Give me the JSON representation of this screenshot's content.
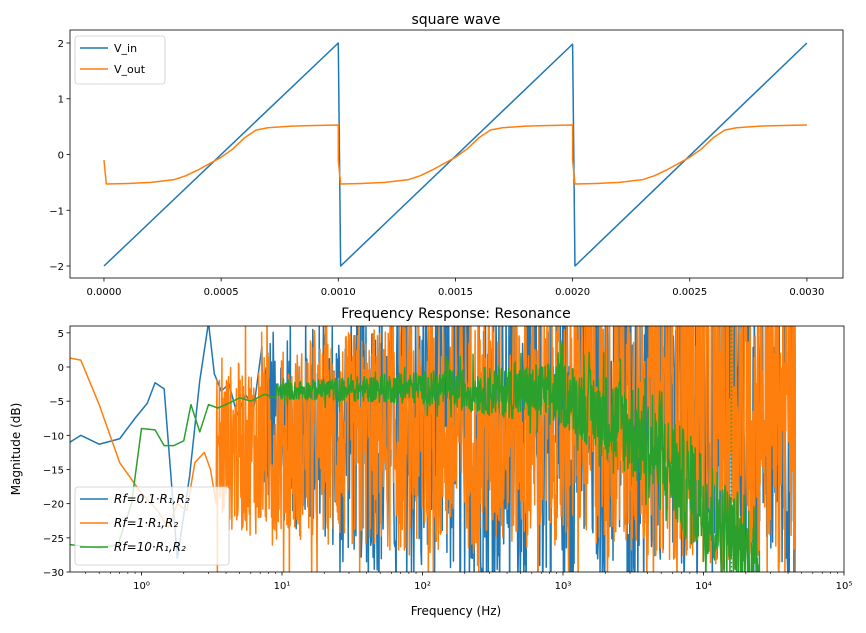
{
  "colors": {
    "blue": "#1f77b4",
    "orange": "#ff7f0e",
    "green": "#2ca02c"
  },
  "chart_data": [
    {
      "type": "line",
      "title": "square wave",
      "xlabel": "",
      "ylabel": "",
      "xlim": [
        -0.000145,
        0.003154
      ],
      "ylim": [
        -2.215,
        2.233
      ],
      "xticks": [
        0,
        0.0005,
        0.001,
        0.0015,
        0.002,
        0.0025,
        0.003
      ],
      "xtick_labels": [
        "0.0000",
        "0.0005",
        "0.0010",
        "0.0015",
        "0.0020",
        "0.0025",
        "0.0030"
      ],
      "yticks": [
        2,
        1,
        0,
        -1,
        -2
      ],
      "ytick_labels": [
        "2",
        "1",
        "0",
        "−1",
        "−2"
      ],
      "legend": "top-left",
      "series": [
        {
          "name": "V_in",
          "color": "#1f77b4",
          "x": [
            0,
            0.001,
            0.00101,
            0.002,
            0.00201,
            0.003
          ],
          "y": [
            -2,
            2,
            -2,
            1.98,
            -2,
            2
          ]
        },
        {
          "name": "V_out",
          "color": "#ff7f0e",
          "x": [
            0,
            1e-05,
            0.0001,
            0.0002,
            0.0003,
            0.00035,
            0.0004,
            0.0005,
            0.00055,
            0.0006,
            0.00065,
            0.0007,
            0.0008,
            0.0009,
            0.001,
            0.001,
            0.00101,
            0.0011,
            0.0012,
            0.0013,
            0.00135,
            0.0014,
            0.0015,
            0.00155,
            0.0016,
            0.00165,
            0.0017,
            0.0018,
            0.0019,
            0.002,
            0.002,
            0.00201,
            0.0021,
            0.0022,
            0.0023,
            0.00235,
            0.0024,
            0.0025,
            0.00255,
            0.0026,
            0.00265,
            0.0027,
            0.0028,
            0.0029,
            0.003
          ],
          "y": [
            -0.1,
            -0.53,
            -0.52,
            -0.5,
            -0.45,
            -0.38,
            -0.28,
            -0.05,
            0.1,
            0.3,
            0.44,
            0.48,
            0.51,
            0.52,
            0.53,
            -0.1,
            -0.53,
            -0.52,
            -0.5,
            -0.45,
            -0.38,
            -0.28,
            -0.05,
            0.1,
            0.3,
            0.44,
            0.48,
            0.51,
            0.52,
            0.53,
            -0.1,
            -0.53,
            -0.52,
            -0.5,
            -0.45,
            -0.38,
            -0.28,
            -0.05,
            0.1,
            0.3,
            0.44,
            0.48,
            0.51,
            0.52,
            0.53
          ]
        }
      ]
    },
    {
      "type": "line",
      "title": "Frequency Response: Resonance",
      "xlabel": "Frequency (Hz)",
      "ylabel": "Magnitude (dB)",
      "xscale": "log",
      "xlim": [
        0.31,
        100000
      ],
      "ylim": [
        -30,
        6
      ],
      "xticks": [
        1,
        10,
        100,
        1000,
        10000,
        100000
      ],
      "xtick_labels": [
        "10⁰",
        "10¹",
        "10²",
        "10³",
        "10⁴",
        "10⁵"
      ],
      "yticks": [
        5,
        0,
        -5,
        -10,
        -15,
        -20,
        -25,
        -30
      ],
      "ytick_labels": [
        "5",
        "0",
        "−5",
        "−10",
        "−15",
        "−20",
        "−25",
        "−30"
      ],
      "legend": "lower-left",
      "vline": {
        "x": 15800,
        "color": "#2ca02c",
        "style": "dotted"
      },
      "series": [
        {
          "name": "Rf=0.1·R₁,R₂",
          "color": "#1f77b4",
          "x": [
            0.31,
            0.37,
            0.5,
            0.7,
            0.9,
            1.1,
            1.25,
            1.45,
            1.8,
            2.2,
            2.6,
            3.0,
            3.3,
            3.7,
            4.2,
            4.8,
            5.5,
            6.3,
            7.2
          ],
          "y": [
            -11,
            -10,
            -11.3,
            -10.5,
            -7.5,
            -5.3,
            -2.3,
            -3.2,
            -28,
            -16,
            -2,
            6.5,
            -1,
            -3.5,
            -2.5,
            -7,
            -4,
            -6,
            3
          ],
          "noisy": {
            "from": 7.2,
            "to": 44000,
            "points": 900,
            "trend_f": [
              7.2,
              100,
              1000,
              10000,
              44000
            ],
            "trend_db": [
              -8,
              -10,
              -8,
              -8,
              -8
            ],
            "spread_db": [
              22,
              40,
              40,
              40,
              40
            ]
          }
        },
        {
          "name": "Rf=1·R₁,R₂",
          "color": "#ff7f0e",
          "x": [
            0.31,
            0.37,
            0.5,
            0.7,
            1.0,
            1.3,
            1.55,
            1.8,
            2.1,
            2.4,
            2.8,
            3.1,
            3.4
          ],
          "y": [
            1.3,
            1.0,
            -5.5,
            -14,
            -18.5,
            -21,
            -23.5,
            -20,
            -21,
            -14,
            -12.5,
            -15,
            -20
          ],
          "noisy": {
            "from": 3.4,
            "to": 45000,
            "points": 1400,
            "trend_f": [
              3.4,
              100,
              1000,
              10000,
              45000
            ],
            "trend_db": [
              -12,
              -10,
              -8,
              -5,
              -5
            ],
            "spread_db": [
              20,
              30,
              30,
              40,
              40
            ]
          }
        },
        {
          "name": "Rf=10·R₁,R₂",
          "color": "#2ca02c",
          "x": [
            0.31,
            0.5,
            0.68,
            0.85,
            1.0,
            1.25,
            1.45,
            1.7,
            2.0,
            2.25,
            2.6,
            3.0,
            3.5,
            4.2,
            5.0,
            6.0,
            7.5,
            9.0
          ],
          "y": [
            -26,
            -26.5,
            -26,
            -20,
            -9,
            -9.2,
            -11.5,
            -11.5,
            -10.8,
            -5.5,
            -9.5,
            -5.5,
            -6,
            -5.3,
            -4.5,
            -5,
            -4,
            -4.5
          ],
          "noisy": {
            "from": 9.0,
            "to": 25000,
            "points": 1100,
            "trend_f": [
              9,
              100,
              1000,
              3000,
              10000,
              25000
            ],
            "trend_db": [
              -3.5,
              -3,
              -4,
              -9,
              -20,
              -29
            ],
            "spread_db": [
              2,
              4,
              8,
              12,
              14,
              8
            ]
          }
        }
      ]
    }
  ]
}
